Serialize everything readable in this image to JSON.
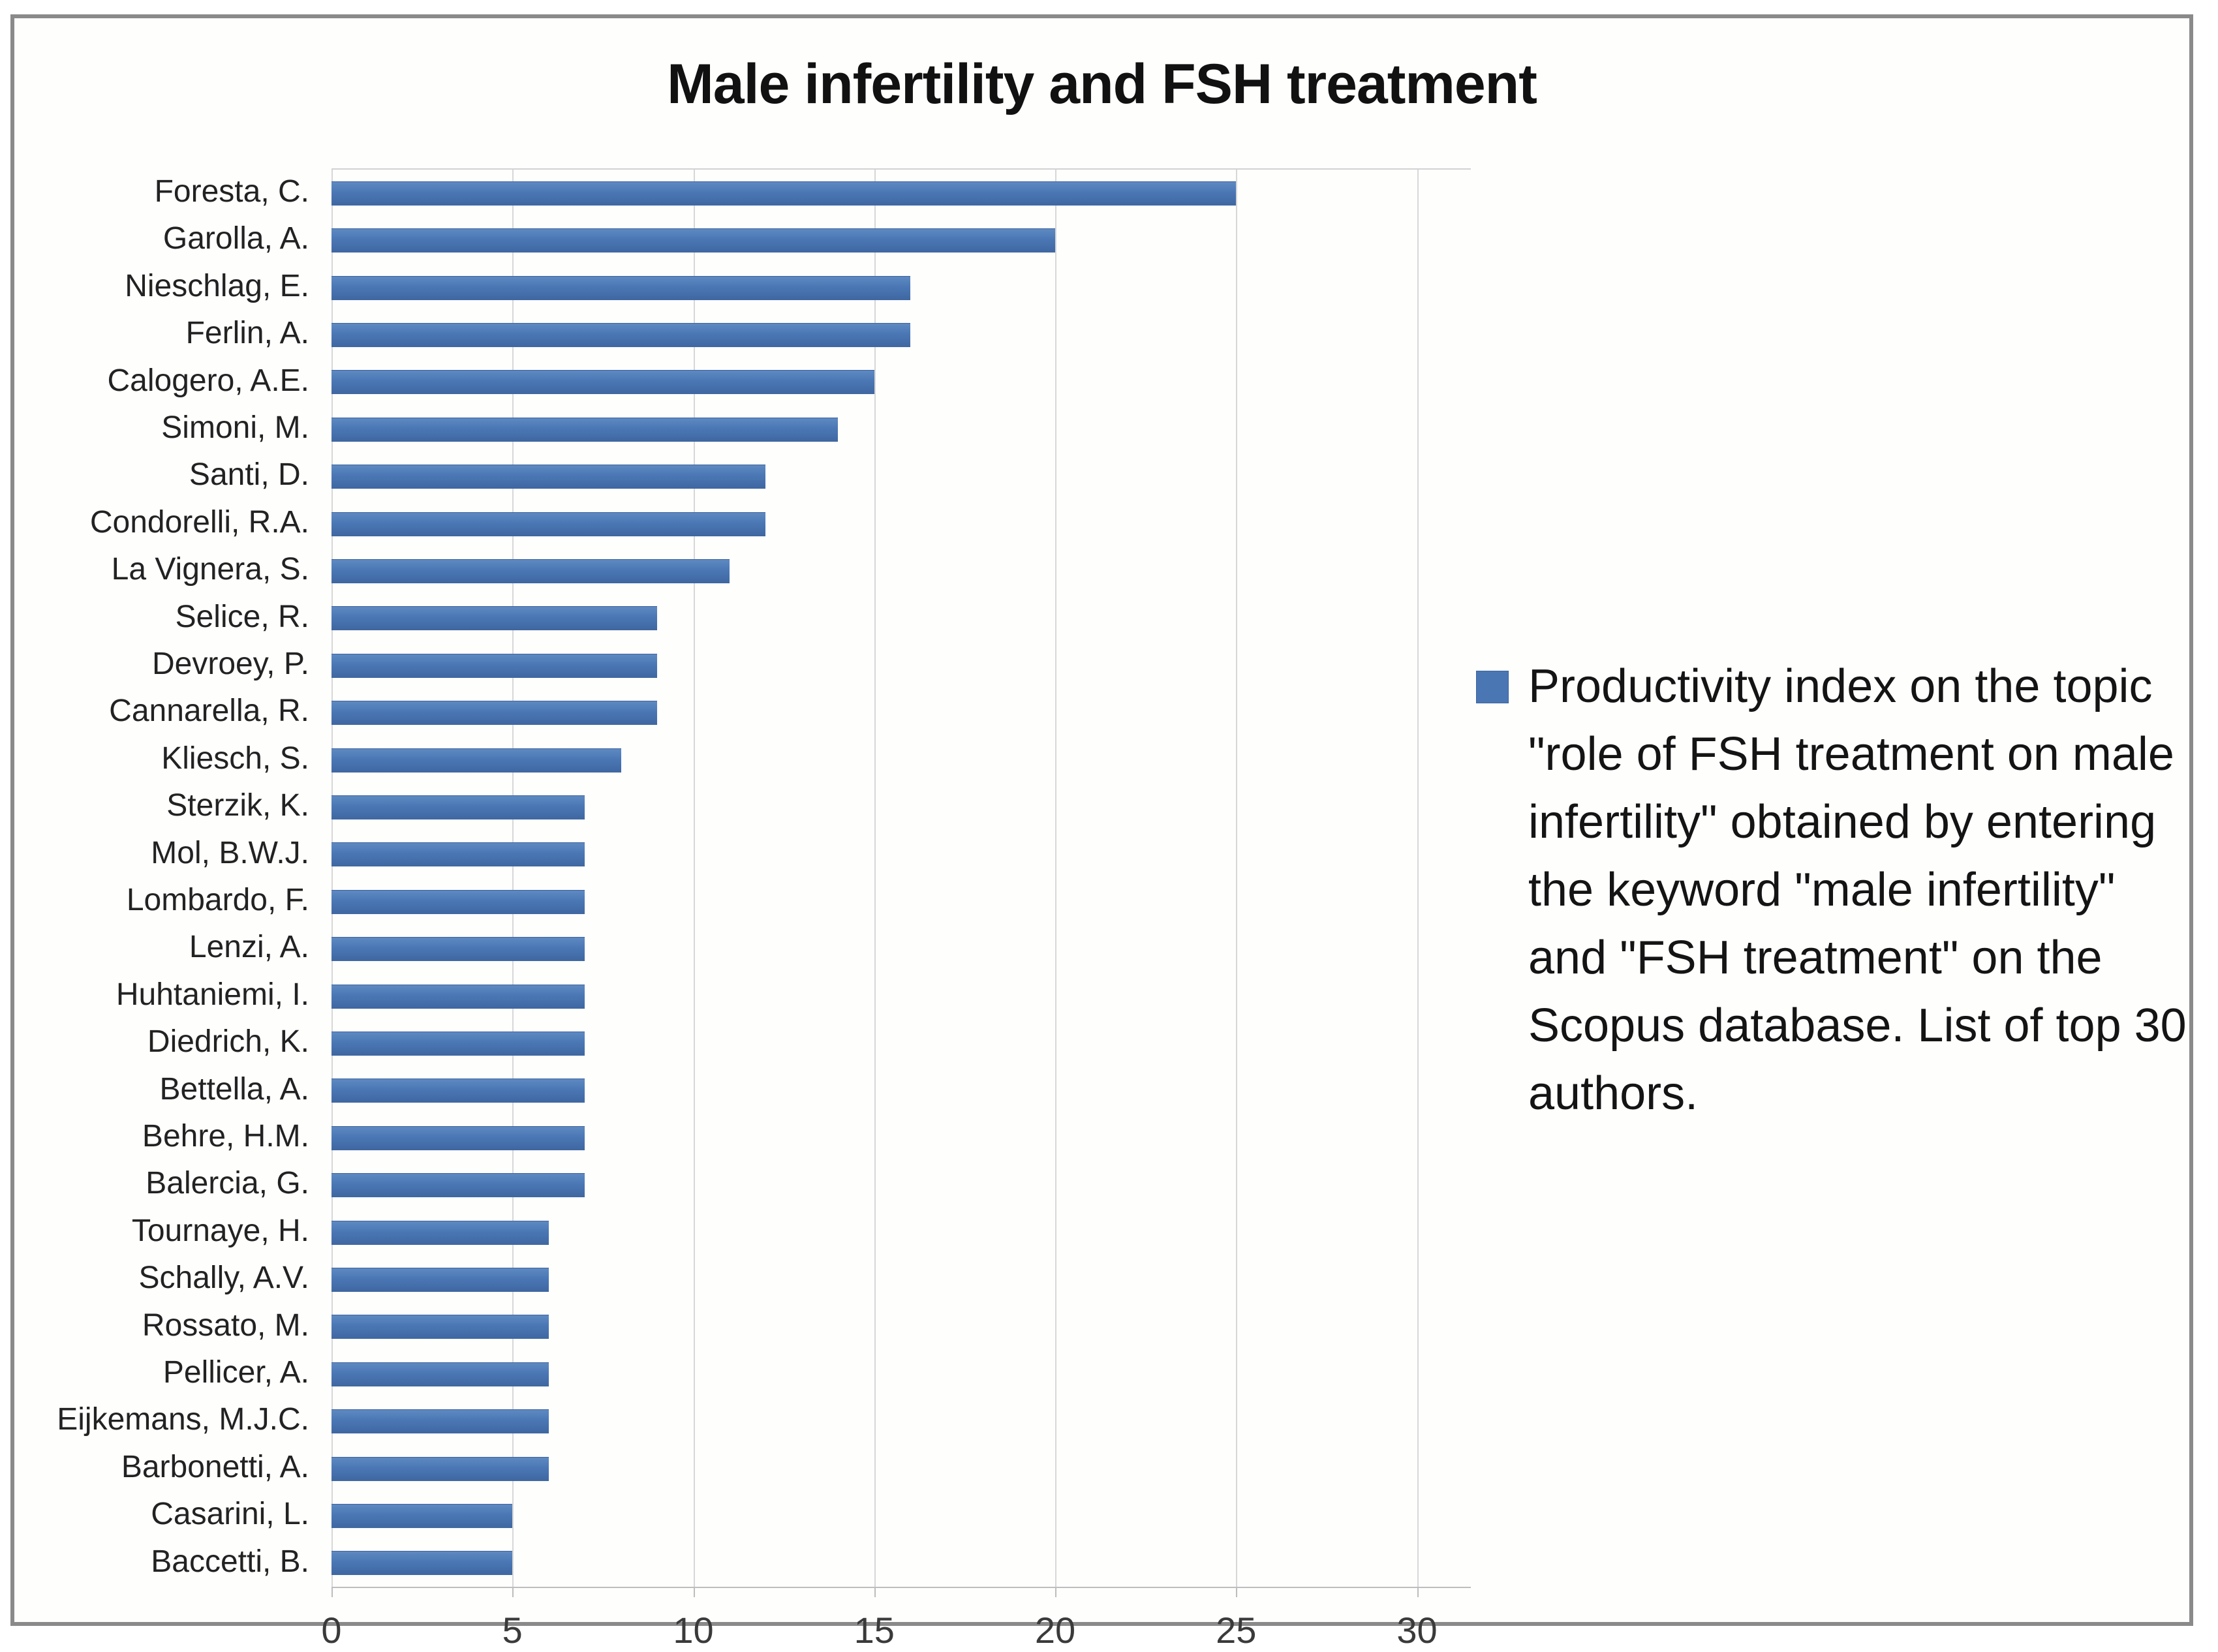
{
  "title": "Male infertility and FSH treatment",
  "legend": {
    "label": "Productivity index on the topic \"role of FSH treatment on male infertility\" obtained by entering the keyword \"male infertility\" and \"FSH treatment\" on the Scopus database. List of top 30 authors."
  },
  "colors": {
    "bar": "#4a77b4",
    "gridline": "#d7d7d7",
    "figure_border": "#8a8a8a",
    "title_text": "#111111",
    "axis_text": "#3a3a3a"
  },
  "chart_data": {
    "type": "bar",
    "orientation": "horizontal",
    "title": "Male infertility and FSH treatment",
    "xlabel": "",
    "ylabel": "",
    "xlim": [
      0,
      30
    ],
    "x_ticks": [
      0,
      5,
      10,
      15,
      20,
      25,
      30
    ],
    "grid": true,
    "legend_position": "right",
    "series_name": "Productivity index on the topic \"role of FSH treatment on male infertility\" obtained by entering the keyword \"male infertility\" and \"FSH treatment\" on the Scopus database. List of top 30 authors.",
    "categories": [
      "Foresta, C.",
      "Garolla, A.",
      "Nieschlag, E.",
      "Ferlin, A.",
      "Calogero, A.E.",
      "Simoni, M.",
      "Santi, D.",
      "Condorelli, R.A.",
      "La Vignera, S.",
      "Selice, R.",
      "Devroey, P.",
      "Cannarella, R.",
      "Kliesch, S.",
      "Sterzik, K.",
      "Mol, B.W.J.",
      "Lombardo, F.",
      "Lenzi, A.",
      "Huhtaniemi, I.",
      "Diedrich, K.",
      "Bettella, A.",
      "Behre, H.M.",
      "Balercia, G.",
      "Tournaye, H.",
      "Schally, A.V.",
      "Rossato, M.",
      "Pellicer, A.",
      "Eijkemans, M.J.C.",
      "Barbonetti, A.",
      "Casarini, L.",
      "Baccetti, B."
    ],
    "values": [
      25,
      20,
      16,
      16,
      15,
      14,
      12,
      12,
      11,
      9,
      9,
      9,
      8,
      7,
      7,
      7,
      7,
      7,
      7,
      7,
      7,
      7,
      6,
      6,
      6,
      6,
      6,
      6,
      5,
      5
    ]
  }
}
